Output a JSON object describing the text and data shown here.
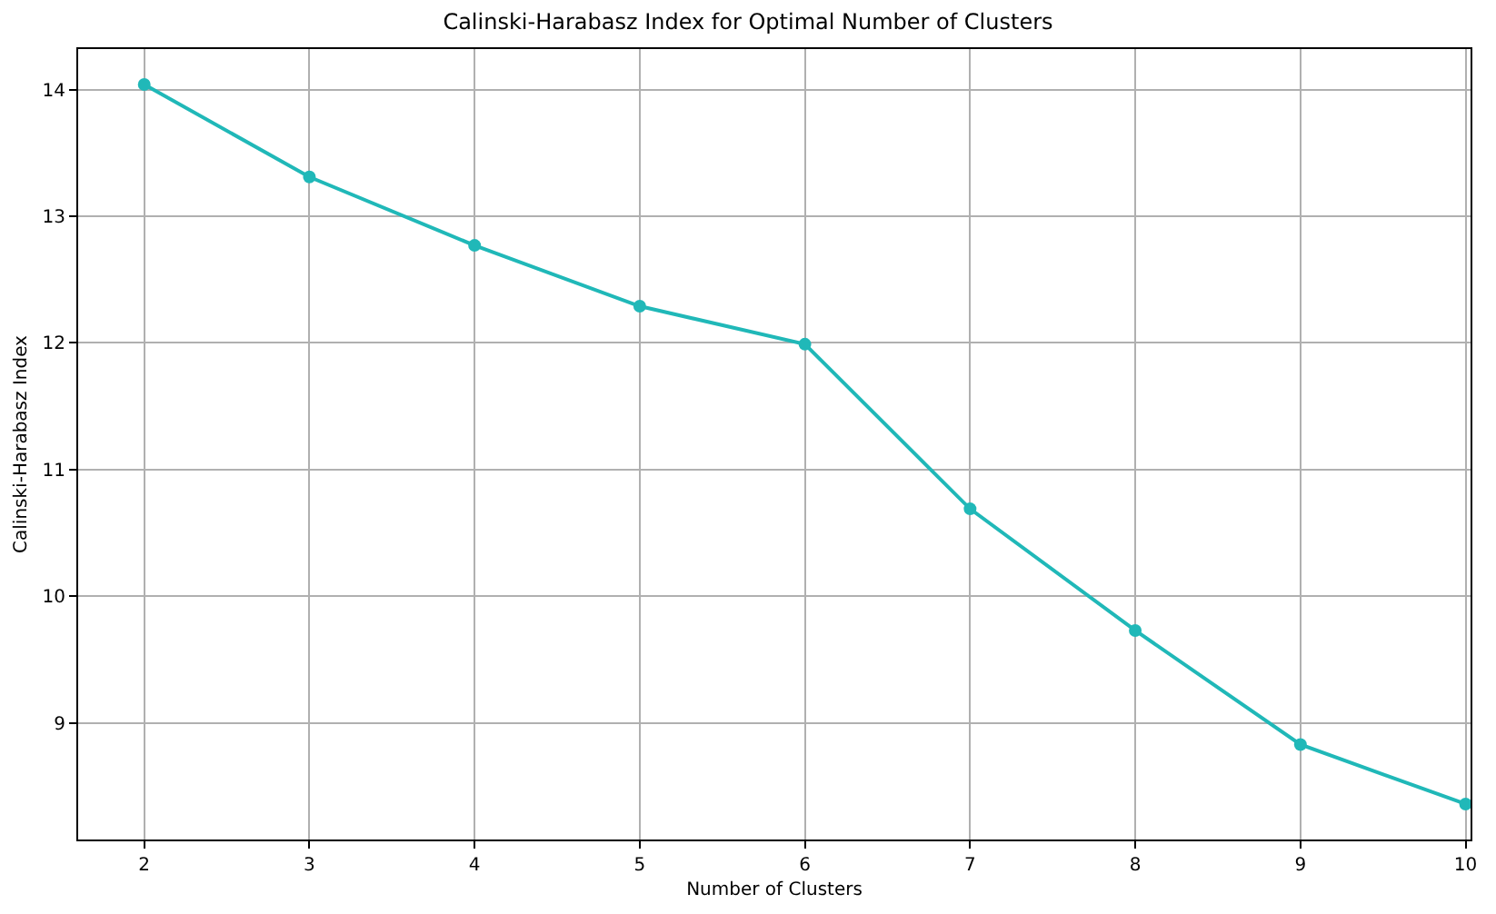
{
  "chart_data": {
    "type": "line",
    "title": "Calinski-Harabasz Index for Optimal Number of Clusters",
    "xlabel": "Number of Clusters",
    "ylabel": "Calinski-Harabasz Index",
    "x": [
      2,
      3,
      4,
      5,
      6,
      7,
      8,
      9,
      10
    ],
    "series": [
      {
        "color": "#20b8b8",
        "values": [
          14.04,
          13.31,
          12.77,
          12.29,
          11.99,
          10.69,
          9.73,
          8.83,
          8.36
        ]
      }
    ],
    "xlim": [
      1.6,
      10.03
    ],
    "xticks": [
      2,
      3,
      4,
      5,
      6,
      7,
      8,
      9,
      10
    ],
    "ylim": [
      8.08,
      14.32
    ],
    "yticks": [
      9,
      10,
      11,
      12,
      13,
      14
    ],
    "grid": true,
    "marker": "circle",
    "line_style": "solid",
    "legend": false
  }
}
